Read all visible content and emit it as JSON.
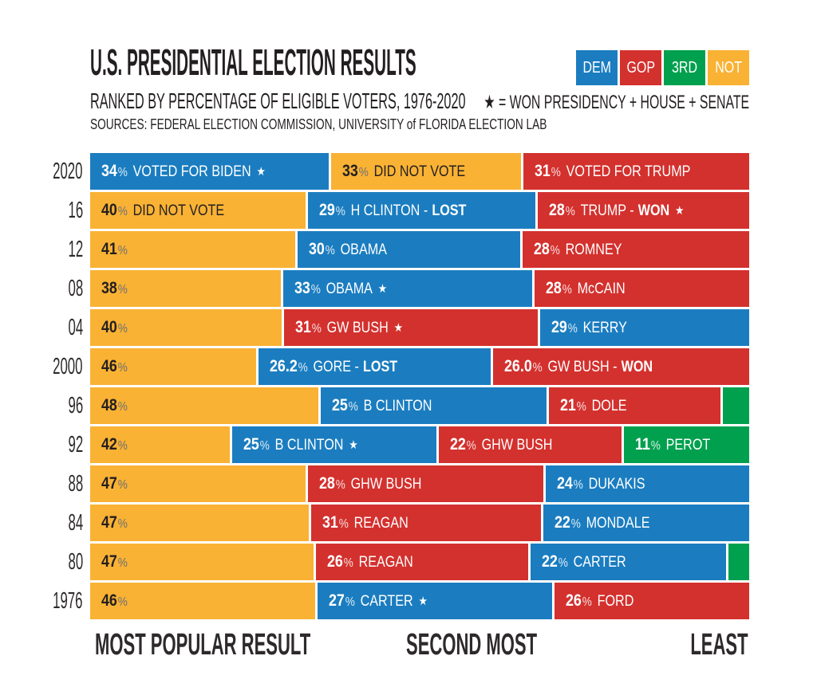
{
  "header": {
    "title": "U.S. PRESIDENTIAL ELECTION RESULTS",
    "subtitle": "RANKED BY PERCENTAGE OF ELIGIBLE VOTERS, 1976-2020",
    "sources": "SOURCES: FEDERAL ELECTION COMMISSION, UNIVERSITY of FLORIDA ELECTION LAB"
  },
  "legend": {
    "items": [
      {
        "label": "DEM",
        "color": "#1b7dc0"
      },
      {
        "label": "GOP",
        "color": "#d3312e"
      },
      {
        "label": "3RD",
        "color": "#00a04e"
      },
      {
        "label": "NOT",
        "color": "#f9b234"
      }
    ],
    "star_note": "★ = WON PRESIDENCY + HOUSE + SENATE"
  },
  "footer": {
    "left": "MOST POPULAR RESULT",
    "middle": "SECOND MOST",
    "right": "LEAST"
  },
  "chart_data": {
    "type": "bar",
    "subtype": "horizontal-stacked",
    "unit": "% of eligible voters",
    "percent_sign": "%",
    "star_glyph": "★",
    "star_meaning": "WON PRESIDENCY + HOUSE + SENATE",
    "colors": {
      "DEM": "#1b7dc0",
      "GOP": "#d3312e",
      "3RD": "#00a04e",
      "NOT": "#f9b234"
    },
    "categories": [
      "2020",
      "16",
      "12",
      "08",
      "04",
      "2000",
      "96",
      "92",
      "88",
      "84",
      "80",
      "1976"
    ],
    "rows": [
      {
        "year": "2020",
        "segments": [
          {
            "party": "DEM",
            "value": 34,
            "value_label": "34",
            "label": "VOTED FOR BIDEN",
            "star": true
          },
          {
            "party": "NOT",
            "value": 33,
            "value_label": "33",
            "label": "DID NOT VOTE"
          },
          {
            "party": "GOP",
            "value": 31,
            "value_label": "31",
            "label": "VOTED FOR TRUMP"
          }
        ]
      },
      {
        "year": "16",
        "segments": [
          {
            "party": "NOT",
            "value": 40,
            "value_label": "40",
            "label": "DID NOT VOTE"
          },
          {
            "party": "DEM",
            "value": 29,
            "value_label": "29",
            "label": "H CLINTON -",
            "bold_suffix": "LOST"
          },
          {
            "party": "GOP",
            "value": 28,
            "value_label": "28",
            "label": "TRUMP -",
            "bold_suffix": "WON",
            "star": true
          }
        ]
      },
      {
        "year": "12",
        "segments": [
          {
            "party": "NOT",
            "value": 41,
            "value_label": "41",
            "label": ""
          },
          {
            "party": "DEM",
            "value": 30,
            "value_label": "30",
            "label": "OBAMA"
          },
          {
            "party": "GOP",
            "value": 28,
            "value_label": "28",
            "label": "ROMNEY"
          }
        ]
      },
      {
        "year": "08",
        "segments": [
          {
            "party": "NOT",
            "value": 38,
            "value_label": "38",
            "label": ""
          },
          {
            "party": "DEM",
            "value": 33,
            "value_label": "33",
            "label": "OBAMA",
            "star": true
          },
          {
            "party": "GOP",
            "value": 28,
            "value_label": "28",
            "label": "McCAIN"
          }
        ]
      },
      {
        "year": "04",
        "segments": [
          {
            "party": "NOT",
            "value": 40,
            "value_label": "40",
            "label": ""
          },
          {
            "party": "GOP",
            "value": 31,
            "value_label": "31",
            "label": "GW BUSH",
            "star": true
          },
          {
            "party": "DEM",
            "value": 29,
            "value_label": "29",
            "label": "KERRY"
          }
        ]
      },
      {
        "year": "2000",
        "segments": [
          {
            "party": "NOT",
            "value": 46,
            "value_label": "46",
            "label": ""
          },
          {
            "party": "DEM",
            "value": 26.2,
            "value_label": "26.2",
            "label": "GORE -",
            "bold_suffix": "LOST"
          },
          {
            "party": "GOP",
            "value": 26.0,
            "value_label": "26.0",
            "label": "GW BUSH -",
            "bold_suffix": "WON"
          }
        ]
      },
      {
        "year": "96",
        "segments": [
          {
            "party": "NOT",
            "value": 48,
            "value_label": "48",
            "label": ""
          },
          {
            "party": "DEM",
            "value": 25,
            "value_label": "25",
            "label": "B CLINTON"
          },
          {
            "party": "GOP",
            "value": 21,
            "value_label": "21",
            "label": "DOLE"
          },
          {
            "party": "3RD",
            "value": 4,
            "label": ""
          }
        ]
      },
      {
        "year": "92",
        "segments": [
          {
            "party": "NOT",
            "value": 42,
            "value_label": "42",
            "label": ""
          },
          {
            "party": "DEM",
            "value": 25,
            "value_label": "25",
            "label": "B CLINTON",
            "star": true
          },
          {
            "party": "GOP",
            "value": 22,
            "value_label": "22",
            "label": "GHW BUSH"
          },
          {
            "party": "3RD",
            "value": 11,
            "value_label": "11",
            "label": "PEROT"
          }
        ]
      },
      {
        "year": "88",
        "segments": [
          {
            "party": "NOT",
            "value": 47,
            "value_label": "47",
            "label": ""
          },
          {
            "party": "GOP",
            "value": 28,
            "value_label": "28",
            "label": "GHW BUSH"
          },
          {
            "party": "DEM",
            "value": 24,
            "value_label": "24",
            "label": "DUKAKIS"
          }
        ]
      },
      {
        "year": "84",
        "segments": [
          {
            "party": "NOT",
            "value": 47,
            "value_label": "47",
            "label": ""
          },
          {
            "party": "GOP",
            "value": 31,
            "value_label": "31",
            "label": "REAGAN"
          },
          {
            "party": "DEM",
            "value": 22,
            "value_label": "22",
            "label": "MONDALE"
          }
        ]
      },
      {
        "year": "80",
        "segments": [
          {
            "party": "NOT",
            "value": 47,
            "value_label": "47",
            "label": ""
          },
          {
            "party": "GOP",
            "value": 26,
            "value_label": "26",
            "label": "REAGAN"
          },
          {
            "party": "DEM",
            "value": 22,
            "value_label": "22",
            "label": "CARTER"
          },
          {
            "party": "3RD",
            "value": 2.5,
            "label": ""
          }
        ]
      },
      {
        "year": "1976",
        "segments": [
          {
            "party": "NOT",
            "value": 46,
            "value_label": "46",
            "label": ""
          },
          {
            "party": "DEM",
            "value": 27,
            "value_label": "27",
            "label": "CARTER",
            "star": true
          },
          {
            "party": "GOP",
            "value": 26,
            "value_label": "26",
            "label": "FORD"
          }
        ]
      }
    ]
  }
}
